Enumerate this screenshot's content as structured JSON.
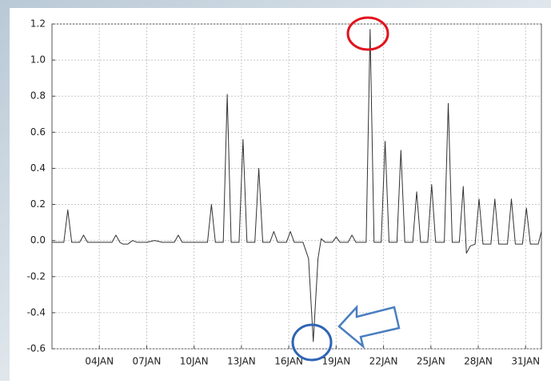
{
  "chart_data": {
    "type": "line",
    "color": "#333333",
    "grid": true,
    "xlim": [
      1,
      32
    ],
    "ylim": [
      -0.6,
      1.2
    ],
    "xticks": [
      {
        "value": 4,
        "label": "04JAN"
      },
      {
        "value": 7,
        "label": "07JAN"
      },
      {
        "value": 10,
        "label": "10JAN"
      },
      {
        "value": 13,
        "label": "13JAN"
      },
      {
        "value": 16,
        "label": "16JAN"
      },
      {
        "value": 19,
        "label": "19JAN"
      },
      {
        "value": 22,
        "label": "22JAN"
      },
      {
        "value": 25,
        "label": "25JAN"
      },
      {
        "value": 28,
        "label": "28JAN"
      },
      {
        "value": 31,
        "label": "31JAN"
      }
    ],
    "yticks": [
      1.2,
      {
        "value": 1,
        "label": "1.0"
      },
      0.8,
      0.6,
      0.4,
      0.2,
      {
        "value": 0,
        "label": "0.0"
      },
      -0.2,
      -0.4,
      -0.6
    ],
    "x": [
      1,
      1.75,
      2,
      2.25,
      2.75,
      3,
      3.25,
      4.8,
      5.05,
      5.3,
      5.5,
      5.8,
      6.1,
      6.4,
      7,
      7.5,
      8,
      8.75,
      9,
      9.25,
      10.85,
      11.1,
      11.35,
      11.85,
      12.1,
      12.35,
      12.85,
      13.1,
      13.35,
      13.85,
      14.1,
      14.35,
      14.8,
      15.05,
      15.3,
      15.85,
      16.1,
      16.35,
      16.9,
      17.25,
      17.55,
      17.85,
      18.05,
      18.3,
      18.75,
      19,
      19.25,
      19.75,
      20,
      20.25,
      20.9,
      21.15,
      21.4,
      21.85,
      22.1,
      22.35,
      22.85,
      23.1,
      23.35,
      23.85,
      24.1,
      24.35,
      24.8,
      25.05,
      25.3,
      25.85,
      26.1,
      26.35,
      26.8,
      27.05,
      27.25,
      27.5,
      27.8,
      28.05,
      28.3,
      28.8,
      29.05,
      29.3,
      29.85,
      30.1,
      30.35,
      30.8,
      31.05,
      31.3,
      31.8,
      32
    ],
    "values": [
      -0.01,
      -0.01,
      0.17,
      -0.01,
      -0.01,
      0.03,
      -0.01,
      -0.01,
      0.03,
      -0.01,
      -0.02,
      -0.02,
      0,
      -0.01,
      -0.01,
      0,
      -0.01,
      -0.01,
      0.03,
      -0.01,
      -0.01,
      0.2,
      -0.01,
      -0.01,
      0.81,
      -0.01,
      -0.01,
      0.56,
      -0.01,
      -0.01,
      0.4,
      -0.01,
      -0.01,
      0.05,
      -0.01,
      -0.01,
      0.05,
      -0.01,
      -0.01,
      -0.1,
      -0.56,
      -0.1,
      0.01,
      -0.01,
      -0.01,
      0.02,
      -0.01,
      -0.01,
      0.03,
      -0.01,
      -0.01,
      1.17,
      -0.01,
      -0.01,
      0.55,
      -0.01,
      -0.01,
      0.5,
      -0.01,
      -0.01,
      0.27,
      -0.01,
      -0.01,
      0.31,
      -0.01,
      -0.01,
      0.76,
      -0.01,
      -0.01,
      0.3,
      -0.07,
      -0.03,
      -0.02,
      0.23,
      -0.02,
      -0.02,
      0.23,
      -0.02,
      -0.02,
      0.23,
      -0.02,
      -0.02,
      0.18,
      -0.02,
      -0.02,
      0.05
    ]
  }
}
